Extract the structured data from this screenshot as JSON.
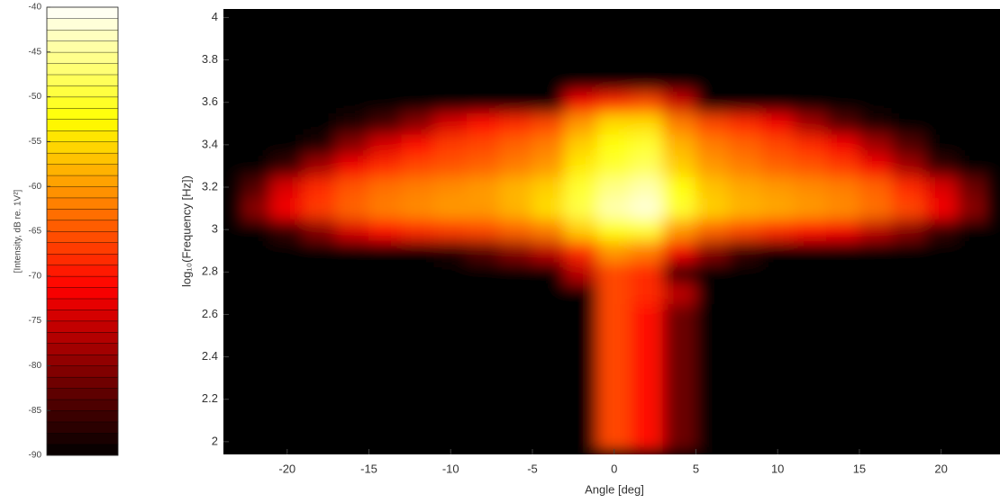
{
  "chart_data": {
    "type": "heatmap",
    "xlabel": "Angle [deg]",
    "ylabel": "log₁₀(Frequency [Hz])",
    "colorbar_label": "[Intensity, dB re. 1V²]",
    "colormap": "hot",
    "xlim": [
      -23.9,
      23.6
    ],
    "ylim": [
      1.94,
      4.04
    ],
    "xticks": [
      -20,
      -15,
      -10,
      -5,
      0,
      5,
      10,
      15,
      20
    ],
    "yticks": [
      2,
      2.2,
      2.4,
      2.6,
      2.8,
      3,
      3.2,
      3.4,
      3.6,
      3.8,
      4
    ],
    "clim": [
      -90,
      -40
    ],
    "cticks": [
      -90,
      -85,
      -80,
      -75,
      -70,
      -65,
      -60,
      -55,
      -50,
      -45,
      -40
    ],
    "x": [
      -22,
      -20,
      -18,
      -16,
      -14,
      -12,
      -10,
      -8,
      -6,
      -4,
      -2,
      0,
      2,
      4,
      6,
      8,
      10,
      12,
      14,
      16,
      18,
      20,
      22
    ],
    "y": [
      2.0,
      2.1,
      2.2,
      2.3,
      2.4,
      2.5,
      2.6,
      2.7,
      2.8,
      2.9,
      3.0,
      3.1,
      3.2,
      3.3,
      3.4,
      3.5,
      3.6,
      3.7,
      3.8,
      3.9,
      4.0
    ],
    "z": [
      [
        -90,
        -90,
        -90,
        -90,
        -90,
        -90,
        -90,
        -90,
        -90,
        -90,
        -90,
        -66,
        -70,
        -82,
        -90,
        -90,
        -90,
        -90,
        -90,
        -90,
        -90,
        -90,
        -90
      ],
      [
        -90,
        -90,
        -90,
        -90,
        -90,
        -90,
        -90,
        -90,
        -90,
        -90,
        -90,
        -66,
        -70,
        -82,
        -90,
        -90,
        -90,
        -90,
        -90,
        -90,
        -90,
        -90,
        -90
      ],
      [
        -90,
        -90,
        -90,
        -90,
        -90,
        -90,
        -90,
        -90,
        -90,
        -90,
        -90,
        -66,
        -70,
        -82,
        -90,
        -90,
        -90,
        -90,
        -90,
        -90,
        -90,
        -90,
        -90
      ],
      [
        -90,
        -90,
        -90,
        -90,
        -90,
        -90,
        -90,
        -90,
        -90,
        -90,
        -90,
        -66,
        -70,
        -82,
        -90,
        -90,
        -90,
        -90,
        -90,
        -90,
        -90,
        -90,
        -90
      ],
      [
        -90,
        -90,
        -90,
        -90,
        -90,
        -90,
        -90,
        -90,
        -90,
        -90,
        -90,
        -66,
        -70,
        -82,
        -90,
        -90,
        -90,
        -90,
        -90,
        -90,
        -90,
        -90,
        -90
      ],
      [
        -90,
        -90,
        -90,
        -90,
        -90,
        -90,
        -90,
        -90,
        -90,
        -90,
        -90,
        -66,
        -70,
        -82,
        -90,
        -90,
        -90,
        -90,
        -90,
        -90,
        -90,
        -90,
        -90
      ],
      [
        -90,
        -90,
        -90,
        -90,
        -90,
        -90,
        -90,
        -90,
        -90,
        -90,
        -90,
        -66,
        -70,
        -82,
        -90,
        -90,
        -90,
        -90,
        -90,
        -90,
        -90,
        -90,
        -90
      ],
      [
        -90,
        -90,
        -90,
        -90,
        -90,
        -90,
        -90,
        -90,
        -90,
        -90,
        -90,
        -66,
        -68,
        -76,
        -90,
        -90,
        -90,
        -90,
        -90,
        -90,
        -90,
        -90,
        -90
      ],
      [
        -90,
        -90,
        -90,
        -90,
        -90,
        -90,
        -90,
        -90,
        -90,
        -90,
        -76,
        -66,
        -68,
        -86,
        -90,
        -90,
        -90,
        -90,
        -90,
        -90,
        -90,
        -90,
        -90
      ],
      [
        -90,
        -90,
        -90,
        -90,
        -90,
        -90,
        -88,
        -84,
        -80,
        -76,
        -68,
        -60,
        -62,
        -72,
        -80,
        -86,
        -90,
        -90,
        -90,
        -90,
        -90,
        -90,
        -90
      ],
      [
        -90,
        -86,
        -80,
        -74,
        -70,
        -68,
        -67,
        -66,
        -64,
        -62,
        -56,
        -52,
        -50,
        -60,
        -64,
        -66,
        -68,
        -70,
        -72,
        -76,
        -80,
        -86,
        -90
      ],
      [
        -80,
        -72,
        -67,
        -64,
        -62,
        -61,
        -60,
        -60,
        -58,
        -55,
        -49,
        -44,
        -42,
        -50,
        -56,
        -58,
        -59,
        -60,
        -61,
        -63,
        -66,
        -72,
        -80
      ],
      [
        -84,
        -74,
        -68,
        -65,
        -63,
        -62,
        -61,
        -60,
        -58,
        -56,
        -50,
        -46,
        -44,
        -52,
        -57,
        -59,
        -60,
        -61,
        -62,
        -64,
        -68,
        -74,
        -82
      ],
      [
        -90,
        -86,
        -78,
        -72,
        -68,
        -66,
        -65,
        -64,
        -62,
        -60,
        -54,
        -50,
        -48,
        -56,
        -60,
        -62,
        -64,
        -65,
        -67,
        -72,
        -78,
        -86,
        -90
      ],
      [
        -90,
        -90,
        -88,
        -80,
        -74,
        -70,
        -67,
        -66,
        -64,
        -62,
        -56,
        -52,
        -50,
        -58,
        -62,
        -64,
        -66,
        -68,
        -72,
        -78,
        -84,
        -90,
        -90
      ],
      [
        -90,
        -90,
        -90,
        -88,
        -85,
        -80,
        -74,
        -70,
        -68,
        -66,
        -60,
        -55,
        -55,
        -62,
        -66,
        -68,
        -72,
        -78,
        -84,
        -88,
        -90,
        -90,
        -90
      ],
      [
        -90,
        -90,
        -90,
        -90,
        -90,
        -90,
        -90,
        -90,
        -90,
        -90,
        -72,
        -68,
        -66,
        -75,
        -90,
        -90,
        -90,
        -90,
        -90,
        -90,
        -90,
        -90,
        -90
      ],
      [
        -90,
        -90,
        -90,
        -90,
        -90,
        -90,
        -90,
        -90,
        -90,
        -90,
        -90,
        -90,
        -90,
        -90,
        -90,
        -90,
        -90,
        -90,
        -90,
        -90,
        -90,
        -90,
        -90
      ],
      [
        -90,
        -90,
        -90,
        -90,
        -90,
        -90,
        -90,
        -90,
        -90,
        -90,
        -90,
        -90,
        -90,
        -90,
        -90,
        -90,
        -90,
        -90,
        -90,
        -90,
        -90,
        -90,
        -90
      ],
      [
        -90,
        -90,
        -90,
        -90,
        -90,
        -90,
        -90,
        -90,
        -90,
        -90,
        -90,
        -90,
        -90,
        -90,
        -90,
        -90,
        -90,
        -90,
        -90,
        -90,
        -90,
        -90,
        -90
      ],
      [
        -90,
        -90,
        -90,
        -90,
        -90,
        -90,
        -90,
        -90,
        -90,
        -90,
        -90,
        -90,
        -90,
        -90,
        -90,
        -90,
        -90,
        -90,
        -90,
        -90,
        -90,
        -90,
        -90
      ]
    ]
  }
}
